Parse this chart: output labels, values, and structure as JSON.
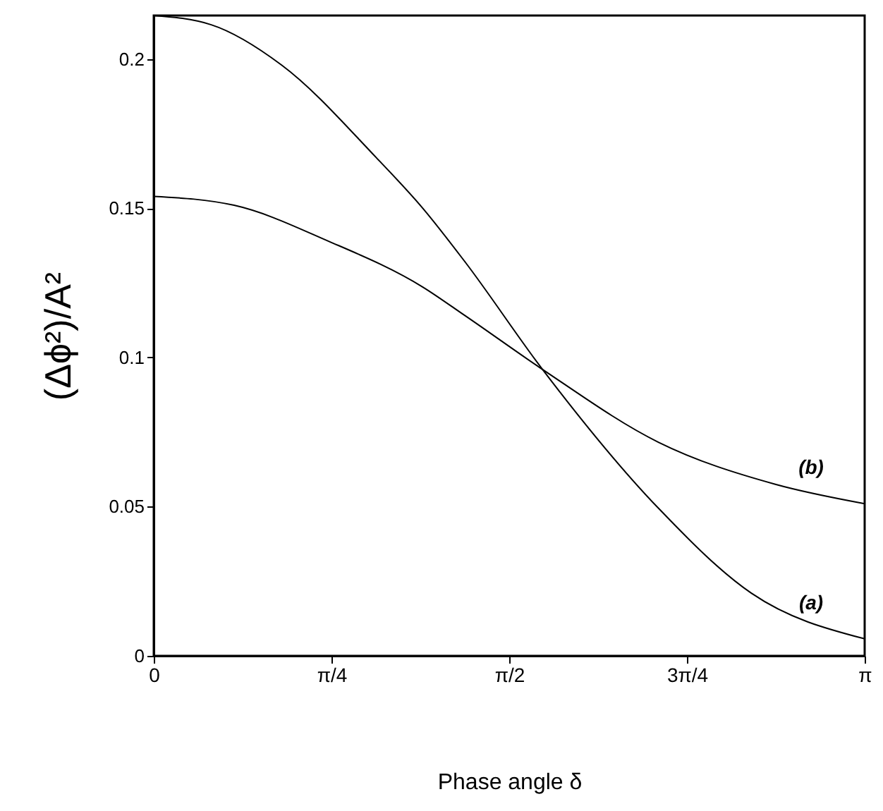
{
  "chart_data": {
    "type": "line",
    "xlabel": "Phase angle δ",
    "ylabel": "(Δϕ²)/A²",
    "xlim": [
      0,
      3.1416
    ],
    "ylim": [
      0,
      0.2146
    ],
    "xticks": [
      0,
      {
        "value": 0.7854,
        "label": "π/4"
      },
      {
        "value": 1.5708,
        "label": "π/2"
      },
      {
        "value": 2.3562,
        "label": "3π/4"
      },
      {
        "value": 3.1416,
        "label": "π"
      }
    ],
    "yticks": [
      0,
      0.05,
      0.1,
      0.15,
      0.2
    ],
    "series": [
      {
        "name": "(a)",
        "color": "#000000",
        "x": [
          0,
          0.254,
          0.565,
          0.983,
          1.189,
          1.376,
          1.718,
          2.23,
          2.641,
          3.1416
        ],
        "values": [
          0.2146,
          0.2115,
          0.198,
          0.167,
          0.15,
          0.132,
          0.096,
          0.0495,
          0.021,
          0.0057
        ]
      },
      {
        "name": "(b)",
        "color": "#000000",
        "x": [
          0,
          0.355,
          0.771,
          1.189,
          1.376,
          1.718,
          2.23,
          2.747,
          3.1416
        ],
        "values": [
          0.154,
          0.151,
          0.139,
          0.1236,
          0.114,
          0.096,
          0.0716,
          0.0575,
          0.051
        ]
      }
    ]
  }
}
